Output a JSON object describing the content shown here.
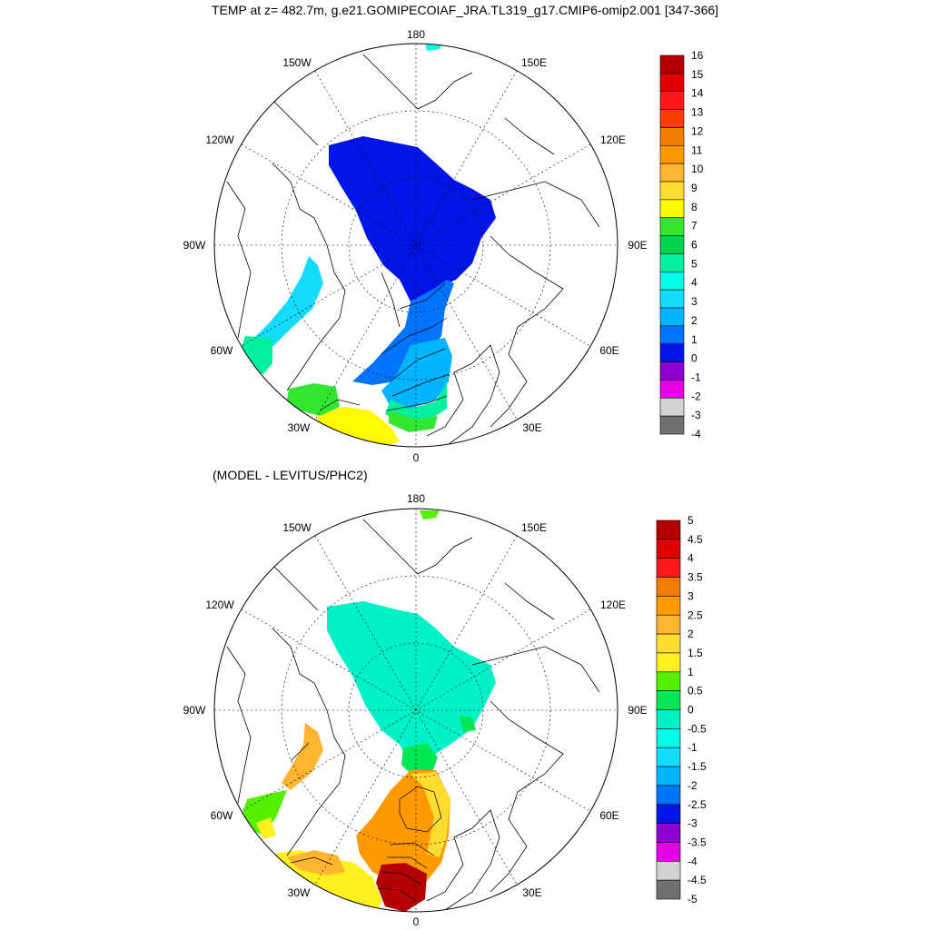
{
  "title": "TEMP at z= 482.7m, g.e21.GOMIPECOIAF_JRA.TL319_g17.CMIP6-omip2.001 [347-366]",
  "subtitle": "(MODEL - LEVITUS/PHC2)",
  "lon_labels": [
    "180",
    "150E",
    "120E",
    "90E",
    "60E",
    "30E",
    "0",
    "30W",
    "60W",
    "90W",
    "120W",
    "150W"
  ],
  "map_top": {
    "colorbar": {
      "labels": [
        "16",
        "15",
        "14",
        "13",
        "12",
        "11",
        "10",
        "9",
        "8",
        "7",
        "6",
        "5",
        "4",
        "3",
        "2",
        "1",
        "0",
        "-1",
        "-2",
        "-3",
        "-4"
      ],
      "colors": [
        "#b40000",
        "#e00000",
        "#ff1a1a",
        "#ff3c00",
        "#f07d00",
        "#ff9900",
        "#ffb432",
        "#ffdc32",
        "#fffa00",
        "#32e632",
        "#00d24b",
        "#00f0a0",
        "#00ffe6",
        "#14dcff",
        "#00b4ff",
        "#0073ff",
        "#0014e6",
        "#8c00d2",
        "#e600e6",
        "#d2d2d2",
        "#707070"
      ]
    }
  },
  "map_bottom": {
    "colorbar": {
      "labels": [
        "5",
        "4.5",
        "4",
        "3.5",
        "3",
        "2.5",
        "2",
        "1.5",
        "1",
        "0.5",
        "0",
        "-0.5",
        "-1",
        "-1.5",
        "-2",
        "-2.5",
        "-3",
        "-3.5",
        "-4",
        "-4.5",
        "-5"
      ],
      "colors": [
        "#b40000",
        "#e00000",
        "#ff1a1a",
        "#f07d00",
        "#ff9900",
        "#ffb432",
        "#ffdc32",
        "#fff01e",
        "#55f000",
        "#00e655",
        "#00f0c8",
        "#00ffe6",
        "#14dcff",
        "#00b4ff",
        "#0073ff",
        "#0014e6",
        "#8c00d2",
        "#e600e6",
        "#d2d2d2",
        "#707070"
      ]
    }
  }
}
